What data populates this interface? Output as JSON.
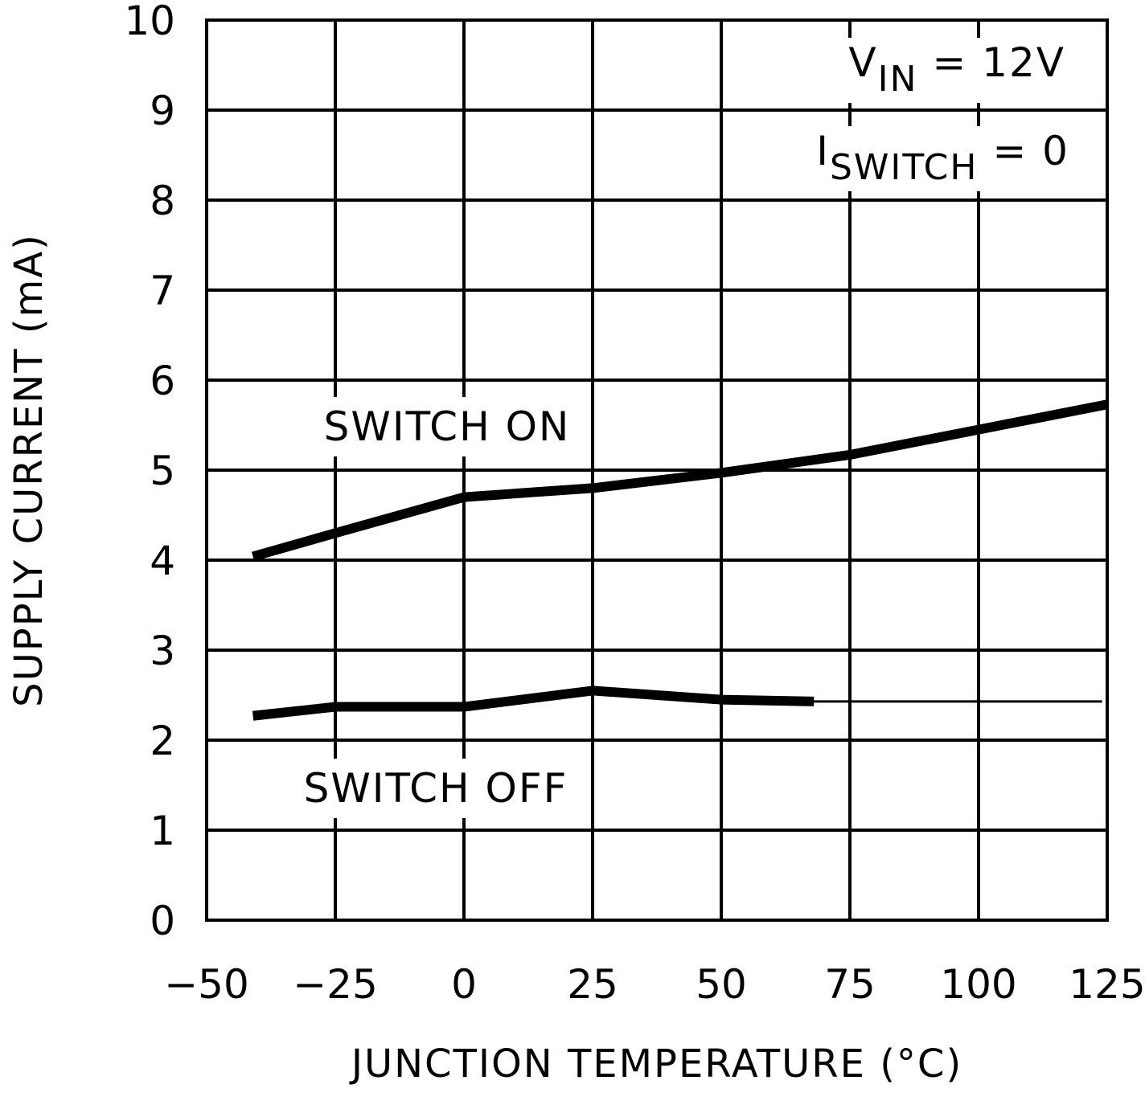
{
  "chart_data": {
    "type": "line",
    "x_label": "JUNCTION TEMPERATURE (°C)",
    "y_label": "SUPPLY CURRENT (mA)",
    "xlim": [
      -50,
      125
    ],
    "ylim": [
      0,
      10
    ],
    "xticks": [
      {
        "value": -50,
        "label": "−50"
      },
      {
        "value": -25,
        "label": "−25"
      },
      0,
      25,
      50,
      75,
      100,
      125
    ],
    "yticks": [
      0,
      1,
      2,
      3,
      4,
      5,
      6,
      7,
      8,
      9,
      10
    ],
    "grid": true,
    "series": [
      {
        "name": "SWITCH ON",
        "color": "#000000",
        "line_width": 12,
        "x": [
          -41,
          -25,
          0,
          25,
          50,
          75,
          100,
          125
        ],
        "values": [
          4.04,
          4.3,
          4.7,
          4.8,
          4.97,
          5.17,
          5.45,
          5.73
        ]
      },
      {
        "name": "SWITCH OFF",
        "color": "#000000",
        "line_width": 12,
        "x": [
          -41,
          -25,
          0,
          25,
          50,
          68
        ],
        "values": [
          2.27,
          2.37,
          2.37,
          2.55,
          2.45,
          2.43
        ]
      },
      {
        "color": "#000000",
        "line_width": 3,
        "x": [
          68,
          124
        ],
        "values": [
          2.43,
          2.43
        ]
      }
    ],
    "annotations": [
      {
        "text": "V",
        "sub": "IN",
        "rest": " = 12V"
      },
      {
        "text": "I",
        "sub": "SWITCH",
        "rest": " = 0"
      }
    ]
  }
}
